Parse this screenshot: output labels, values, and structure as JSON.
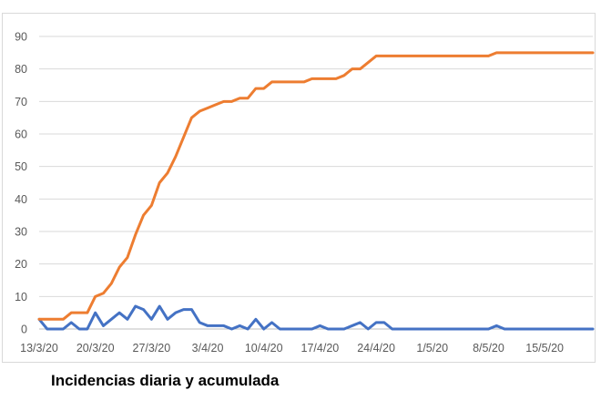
{
  "caption": "Incidencias diaria y acumulada",
  "chart_data": {
    "type": "line",
    "title": "",
    "xlabel": "",
    "ylabel": "",
    "ylim": [
      0,
      90
    ],
    "yticks": [
      0,
      10,
      20,
      30,
      40,
      50,
      60,
      70,
      80,
      90
    ],
    "grid": true,
    "legend": "none",
    "x_start": "2020-03-13",
    "x_end": "2020-05-21",
    "x_tick_labels": [
      "13/3/20",
      "20/3/20",
      "27/3/20",
      "3/4/20",
      "10/4/20",
      "17/4/20",
      "24/4/20",
      "1/5/20",
      "8/5/20",
      "15/5/20"
    ],
    "series": [
      {
        "color": "#4472c4",
        "values": [
          3,
          0,
          0,
          0,
          2,
          0,
          0,
          5,
          1,
          3,
          5,
          3,
          7,
          6,
          3,
          7,
          3,
          5,
          6,
          6,
          2,
          1,
          1,
          1,
          0,
          1,
          0,
          3,
          0,
          2,
          0,
          0,
          0,
          0,
          0,
          1,
          0,
          0,
          0,
          1,
          2,
          0,
          2,
          2,
          0,
          0,
          0,
          0,
          0,
          0,
          0,
          0,
          0,
          0,
          0,
          0,
          0,
          1,
          0,
          0,
          0,
          0,
          0,
          0,
          0,
          0,
          0,
          0,
          0,
          0
        ]
      },
      {
        "color": "#ed7d31",
        "values": [
          3,
          3,
          3,
          3,
          5,
          5,
          5,
          10,
          11,
          14,
          19,
          22,
          29,
          35,
          38,
          45,
          48,
          53,
          59,
          65,
          67,
          68,
          69,
          70,
          70,
          71,
          71,
          74,
          74,
          76,
          76,
          76,
          76,
          76,
          77,
          77,
          77,
          77,
          78,
          80,
          80,
          82,
          84,
          84,
          84,
          84,
          84,
          84,
          84,
          84,
          84,
          84,
          84,
          84,
          84,
          84,
          84,
          85,
          85,
          85,
          85,
          85,
          85,
          85,
          85,
          85,
          85,
          85,
          85,
          85
        ]
      }
    ]
  }
}
